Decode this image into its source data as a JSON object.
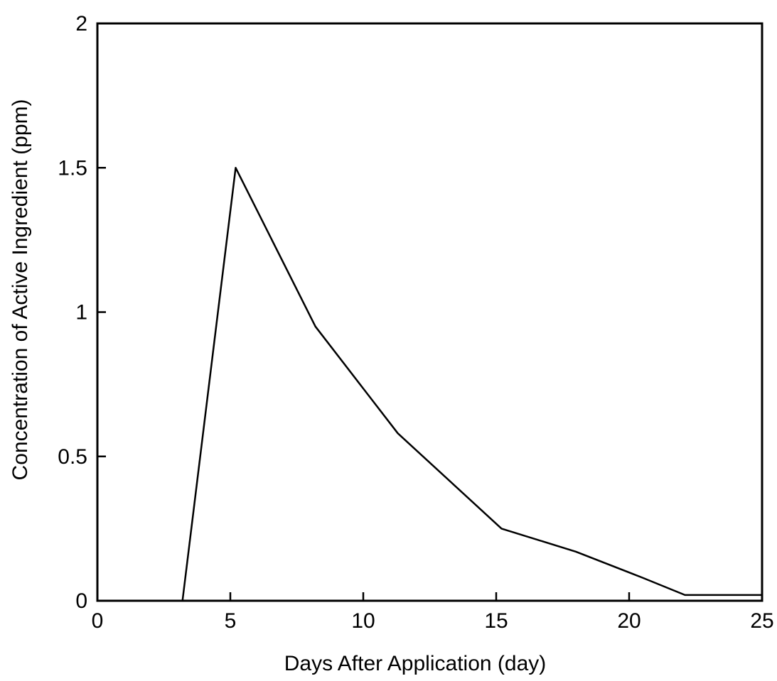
{
  "chart_data": {
    "type": "line",
    "title": "",
    "xlabel": "Days  After  Application  (day)",
    "ylabel": "Concentration  of  Active  Ingredient  (ppm)",
    "xlim": [
      0,
      25
    ],
    "ylim": [
      0,
      2
    ],
    "xticks": [
      0,
      5,
      10,
      15,
      20,
      25
    ],
    "yticks": [
      0,
      0.5,
      1,
      1.5,
      2
    ],
    "xtick_labels": [
      "0",
      "5",
      "10",
      "15",
      "20",
      "25"
    ],
    "ytick_labels": [
      "0",
      "0.5",
      "1",
      "1.5",
      "2"
    ],
    "grid": false,
    "legend": "none",
    "line_color": "#000000",
    "series": [
      {
        "x": [
          3.2,
          5.2,
          8.2,
          11.3,
          15.2,
          18.0,
          20.5,
          22.1,
          25
        ],
        "y": [
          0,
          1.5,
          0.95,
          0.58,
          0.25,
          0.17,
          0.08,
          0.02,
          0.02
        ]
      }
    ]
  }
}
